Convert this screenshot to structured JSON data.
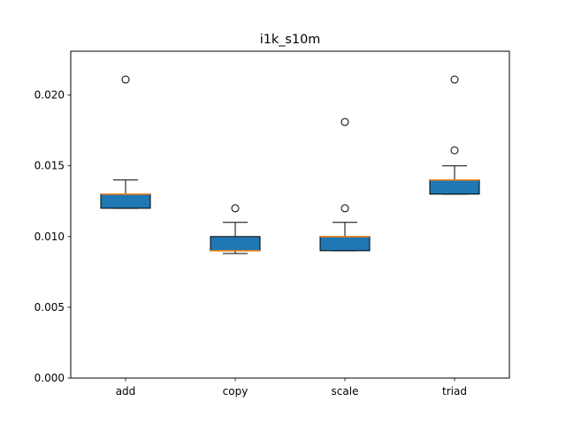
{
  "chart_data": {
    "type": "box",
    "title": "i1k_s10m",
    "xlabel": "",
    "ylabel": "",
    "categories": [
      "add",
      "copy",
      "scale",
      "triad"
    ],
    "ylim": [
      0,
      0.0231
    ],
    "yticks": [
      "0.000",
      "0.005",
      "0.010",
      "0.015",
      "0.020"
    ],
    "grid": false,
    "box_color": "#1f77b4",
    "median_color": "#ff7f0e",
    "boxes": [
      {
        "label": "add",
        "whisker_low": 0.012,
        "q1": 0.012,
        "median": 0.013,
        "q3": 0.013,
        "whisker_high": 0.014,
        "outliers": [
          0.0211
        ]
      },
      {
        "label": "copy",
        "whisker_low": 0.0088,
        "q1": 0.009,
        "median": 0.009,
        "q3": 0.01,
        "whisker_high": 0.011,
        "outliers": [
          0.012
        ]
      },
      {
        "label": "scale",
        "whisker_low": 0.009,
        "q1": 0.009,
        "median": 0.01,
        "q3": 0.01,
        "whisker_high": 0.011,
        "outliers": [
          0.012,
          0.0181
        ]
      },
      {
        "label": "triad",
        "whisker_low": 0.013,
        "q1": 0.013,
        "median": 0.014,
        "q3": 0.014,
        "whisker_high": 0.015,
        "outliers": [
          0.0161,
          0.0211
        ]
      }
    ]
  }
}
